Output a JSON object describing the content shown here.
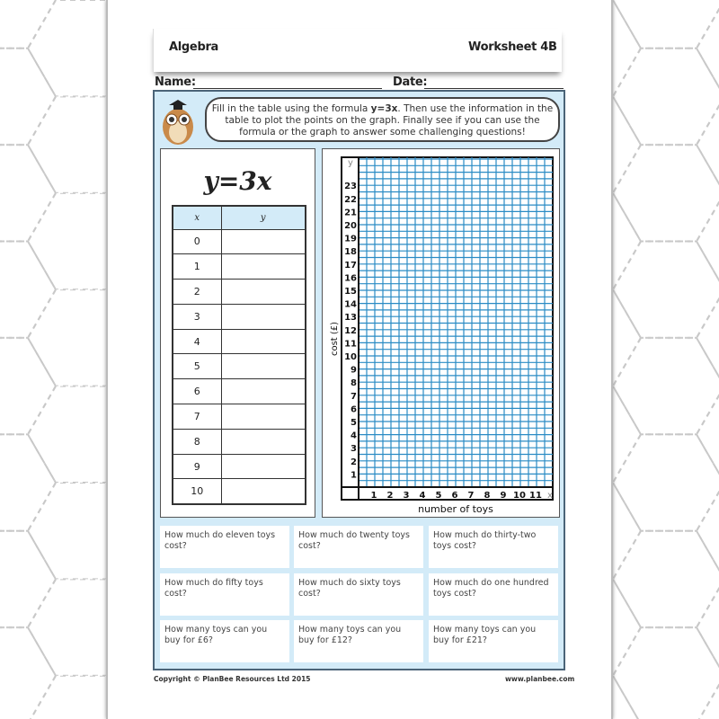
{
  "header": {
    "subject": "Algebra",
    "worksheet": "Worksheet 4B"
  },
  "fields": {
    "name_label": "Name:",
    "date_label": "Date:"
  },
  "instructions": {
    "before": "Fill in the table using the formula ",
    "formula": "y=3x",
    "after": ". Then use the information in the table to plot the points on the graph. Finally see if you can use the formula or the graph to answer some challenging questions!"
  },
  "table": {
    "title": "y=3x",
    "headers": [
      "x",
      "y"
    ],
    "x_values": [
      "0",
      "1",
      "2",
      "3",
      "4",
      "5",
      "6",
      "7",
      "8",
      "9",
      "10"
    ]
  },
  "graph": {
    "x_axis_label": "number of toys",
    "y_axis_label": "cost (£)",
    "x_letter": "x",
    "y_letter": "y",
    "x_ticks": [
      "1",
      "2",
      "3",
      "4",
      "5",
      "6",
      "7",
      "8",
      "9",
      "10",
      "11"
    ],
    "y_ticks": [
      "1",
      "2",
      "3",
      "4",
      "5",
      "6",
      "7",
      "8",
      "9",
      "10",
      "11",
      "12",
      "13",
      "14",
      "15",
      "16",
      "17",
      "18",
      "19",
      "20",
      "21",
      "22",
      "23"
    ],
    "grid_color": "#2a8bc4"
  },
  "questions": [
    "How much do eleven toys cost?",
    "How much do twenty toys cost?",
    "How much do thirty-two toys cost?",
    "How much do fifty toys cost?",
    "How much do sixty toys cost?",
    "How much do one hundred toys cost?",
    "How many toys can you buy for £6?",
    "How many toys can you buy for £12?",
    "How many toys can you buy for £21?"
  ],
  "footer": {
    "copyright": "Copyright © PlanBee Resources Ltd 2015",
    "website": "www.planbee.com"
  },
  "colors": {
    "panel": "#d3ebf8",
    "border": "#4b6478"
  }
}
